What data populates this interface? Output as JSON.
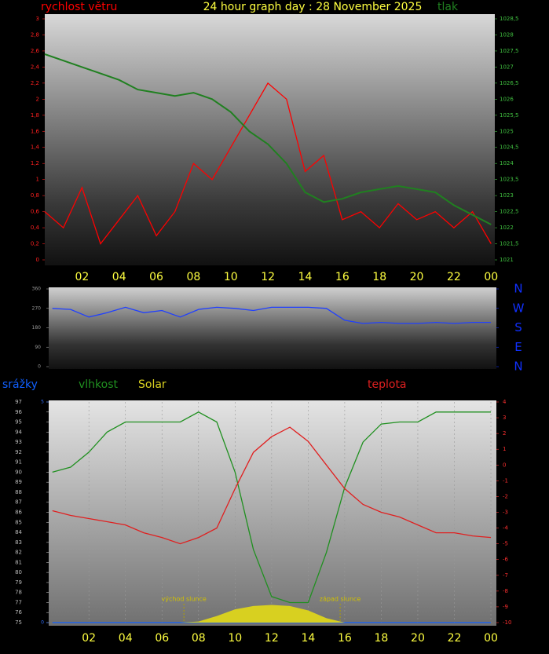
{
  "chart_data": [
    {
      "type": "line",
      "title": "24 hour graph day : 28 November 2025",
      "x": [
        0,
        1,
        2,
        3,
        4,
        5,
        6,
        7,
        8,
        9,
        10,
        11,
        12,
        13,
        14,
        15,
        16,
        17,
        18,
        19,
        20,
        21,
        22,
        23,
        24
      ],
      "xlim": [
        0,
        24.2
      ],
      "xticks": [
        {
          "value": 2,
          "label": "02"
        },
        {
          "value": 4,
          "label": "04"
        },
        {
          "value": 6,
          "label": "06"
        },
        {
          "value": 8,
          "label": "08"
        },
        10,
        12,
        14,
        16,
        18,
        20,
        22,
        {
          "value": 24,
          "label": "00"
        }
      ],
      "ylim": [
        0,
        3
      ],
      "yticks": [
        0,
        {
          "value": 0.2,
          "label": "0,2"
        },
        {
          "value": 0.4,
          "label": "0,4"
        },
        {
          "value": 0.6,
          "label": "0,6"
        },
        {
          "value": 0.8,
          "label": "0,8"
        },
        1,
        {
          "value": 1.2,
          "label": "1,2"
        },
        {
          "value": 1.4,
          "label": "1,4"
        },
        {
          "value": 1.6,
          "label": "1,6"
        },
        {
          "value": 1.8,
          "label": "1,8"
        },
        2,
        {
          "value": 2.2,
          "label": "2,2"
        },
        {
          "value": 2.4,
          "label": "2,4"
        },
        {
          "value": 2.6,
          "label": "2,6"
        },
        {
          "value": 2.8,
          "label": "2,8"
        },
        3
      ],
      "y2lim": [
        1021,
        1028.5
      ],
      "y2ticks": [
        1021,
        {
          "value": 1021.5,
          "label": "1021,5"
        },
        1022,
        {
          "value": 1022.5,
          "label": "1022,5"
        },
        1023,
        {
          "value": 1023.5,
          "label": "1023,5"
        },
        1024,
        {
          "value": 1024.5,
          "label": "1024,5"
        },
        1025,
        {
          "value": 1025.5,
          "label": "1025,5"
        },
        1026,
        {
          "value": 1026.5,
          "label": "1026,5"
        },
        1027,
        {
          "value": 1027.5,
          "label": "1027,5"
        },
        1028,
        {
          "value": 1028.5,
          "label": "1028,5"
        }
      ],
      "series": [
        {
          "name": "rychlost větru",
          "color": "#ff0000",
          "values": [
            0.6,
            0.4,
            0.9,
            0.2,
            0.5,
            0.8,
            0.3,
            0.6,
            1.2,
            1.0,
            1.4,
            1.8,
            2.2,
            2.0,
            1.1,
            1.3,
            0.5,
            0.6,
            0.4,
            0.7,
            0.5,
            0.6,
            0.4,
            0.6,
            0.2
          ]
        },
        {
          "name": "tlak",
          "color": "#208020",
          "axis": "y2",
          "values": [
            1027.4,
            1027.2,
            1027.0,
            1026.8,
            1026.6,
            1026.3,
            1026.2,
            1026.1,
            1026.2,
            1026.0,
            1025.6,
            1025.0,
            1024.6,
            1024.0,
            1023.1,
            1022.8,
            1022.9,
            1023.1,
            1023.2,
            1023.3,
            1023.2,
            1023.1,
            1022.7,
            1022.4,
            1022.1
          ]
        }
      ]
    },
    {
      "type": "line",
      "x": [
        0,
        1,
        2,
        3,
        4,
        5,
        6,
        7,
        8,
        9,
        10,
        11,
        12,
        13,
        14,
        15,
        16,
        17,
        18,
        19,
        20,
        21,
        22,
        23,
        24
      ],
      "xlim": [
        -0.2,
        24.3
      ],
      "ylim": [
        0,
        360
      ],
      "yticks": [
        0,
        90,
        180,
        270,
        360
      ],
      "y2lim": [
        0,
        360
      ],
      "y2ticks": [
        {
          "value": 0,
          "label": "N"
        },
        {
          "value": 90,
          "label": "E"
        },
        {
          "value": 180,
          "label": "S"
        },
        {
          "value": 270,
          "label": "W"
        },
        {
          "value": 360,
          "label": "N"
        }
      ],
      "series": [
        {
          "color": "#2040ff",
          "values": [
            270,
            265,
            230,
            250,
            275,
            250,
            260,
            230,
            265,
            275,
            270,
            260,
            275,
            275,
            275,
            270,
            215,
            200,
            205,
            200,
            200,
            205,
            200,
            205,
            205
          ]
        }
      ]
    },
    {
      "type": "line",
      "grid": true,
      "x": [
        0,
        1,
        2,
        3,
        4,
        5,
        6,
        7,
        8,
        9,
        10,
        11,
        12,
        13,
        14,
        15,
        16,
        17,
        18,
        19,
        20,
        21,
        22,
        23,
        24
      ],
      "xlim": [
        -0.2,
        24.3
      ],
      "xticks": [
        {
          "value": 2,
          "label": "02"
        },
        {
          "value": 4,
          "label": "04"
        },
        {
          "value": 6,
          "label": "06"
        },
        {
          "value": 8,
          "label": "08"
        },
        10,
        12,
        14,
        16,
        18,
        20,
        22,
        {
          "value": 24,
          "label": "00"
        }
      ],
      "ylim": [
        75,
        97
      ],
      "yticks": [
        75,
        76,
        77,
        78,
        79,
        80,
        81,
        82,
        83,
        84,
        85,
        86,
        87,
        88,
        89,
        90,
        91,
        92,
        93,
        94,
        95,
        96,
        97
      ],
      "y2lim": [
        -10,
        4
      ],
      "y2ticks": [
        -10,
        -9,
        -8,
        -7,
        -6,
        -5,
        -4,
        -3,
        -2,
        -1,
        0,
        1,
        2,
        3,
        4
      ],
      "y3lim": [
        0,
        5
      ],
      "y3ticks": [
        0,
        5
      ],
      "y4lim": [
        0,
        200
      ],
      "annotations": [
        {
          "text": "východ slunce",
          "x": 7.2
        },
        {
          "text": "západ slunce",
          "x": 15.75
        }
      ],
      "series": [
        {
          "name": "srážky",
          "color": "#1060ff",
          "axis": "y3",
          "values": [
            0,
            0,
            0,
            0,
            0,
            0,
            0,
            0,
            0,
            0,
            0,
            0,
            0,
            0,
            0,
            0,
            0,
            0,
            0,
            0,
            0,
            0,
            0,
            0,
            0
          ]
        },
        {
          "name": "vlhkost",
          "color": "#209020",
          "values": [
            90,
            90.5,
            92,
            94,
            95,
            95,
            95,
            95,
            96,
            95,
            90,
            82.3,
            77.6,
            77,
            77,
            82,
            88.5,
            93,
            94.8,
            95,
            95,
            96,
            96,
            96,
            96
          ]
        },
        {
          "name": "Solar",
          "color": "#d8d020",
          "axis": "y4",
          "fill": true,
          "values": [
            0,
            0,
            0,
            0,
            0,
            0,
            0,
            0,
            1,
            6,
            12,
            15,
            16,
            15,
            11,
            4,
            0,
            0,
            0,
            0,
            0,
            0,
            0,
            0,
            0
          ]
        },
        {
          "name": "teplota",
          "color": "#e02020",
          "axis": "y2",
          "values": [
            -2.9,
            -3.2,
            -3.4,
            -3.6,
            -3.8,
            -4.3,
            -4.6,
            -5.0,
            -4.6,
            -4.0,
            -1.5,
            0.8,
            1.8,
            2.4,
            1.5,
            0,
            -1.5,
            -2.5,
            -3.0,
            -3.3,
            -3.8,
            -4.3,
            -4.3,
            -4.5,
            -4.6
          ]
        }
      ]
    }
  ]
}
